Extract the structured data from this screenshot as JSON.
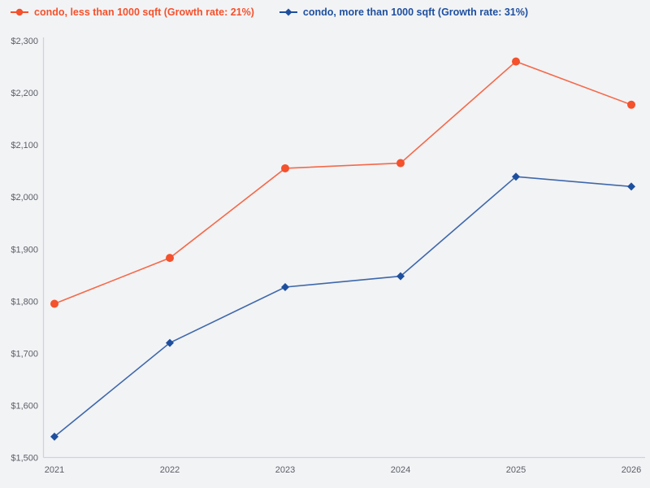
{
  "colors": {
    "background": "#f2f3f5",
    "axis_line": "#c7d3e8",
    "tick_label": "#5a5e66"
  },
  "chart_data": {
    "type": "line",
    "title": "",
    "xlabel": "",
    "ylabel": "",
    "categories": [
      "2021",
      "2022",
      "2023",
      "2024",
      "2025",
      "2026"
    ],
    "series": [
      {
        "name": "condo, less than 1000 sqft (Growth rate: 21%)",
        "color": "#f4512c",
        "marker": "circle",
        "values": [
          1795,
          1883,
          2055,
          2065,
          2260,
          2177
        ]
      },
      {
        "name": "condo, more than 1000 sqft (Growth rate: 31%)",
        "color": "#1e4f9e",
        "marker": "diamond",
        "values": [
          1540,
          1720,
          1827,
          1848,
          2039,
          2020
        ]
      }
    ],
    "ylim": [
      1500,
      2300
    ],
    "ytick_step": 100,
    "ytick_prefix": "$",
    "grid": false,
    "legend_position": "top-left"
  }
}
